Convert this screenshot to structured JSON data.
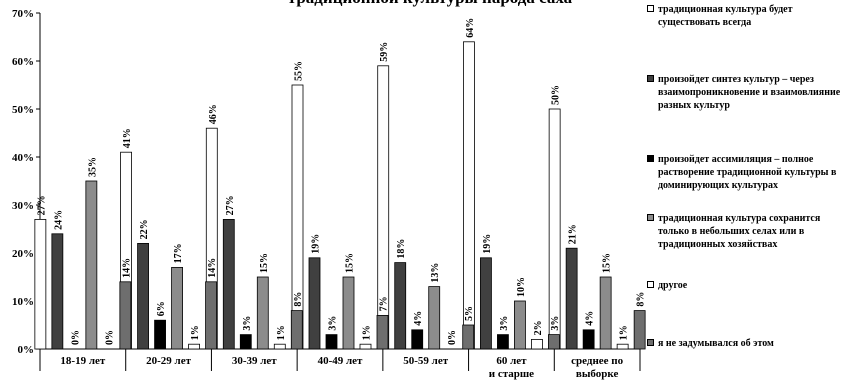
{
  "chart_data": {
    "type": "bar",
    "title": "традиционной культуры народа саха",
    "categories": [
      "18-19 лет",
      "20-29 лет",
      "30-39 лет",
      "40-49 лет",
      "50-59 лет",
      "60 лет и старше",
      "среднее по выборке"
    ],
    "ylim": [
      0,
      70
    ],
    "yticks": [
      "0%",
      "10%",
      "20%",
      "30%",
      "40%",
      "50%",
      "60%",
      "70%"
    ],
    "series": [
      {
        "name": "традиционная культура будет существовать всегда",
        "color": "#ffffff",
        "values": [
          27,
          41,
          46,
          55,
          59,
          64,
          50
        ],
        "labels": [
          "27%",
          "41%",
          "46%",
          "55%",
          "59%",
          "64%",
          "50%"
        ]
      },
      {
        "name": "произойдет синтез культур – через взаимопроникновение и взаимовлияние разных культур",
        "color": "#404040",
        "values": [
          24,
          22,
          27,
          19,
          18,
          19,
          21
        ],
        "labels": [
          "24%",
          "22%",
          "27%",
          "19%",
          "18%",
          "19%",
          "21%"
        ]
      },
      {
        "name": "произойдет ассимиляция – полное растворение традиционной культуры в доминирующих культурах",
        "color": "#000000",
        "values": [
          0,
          6,
          3,
          3,
          4,
          3,
          4
        ],
        "labels": [
          "0%",
          "6%",
          "3%",
          "3%",
          "4%",
          "3%",
          "4%"
        ]
      },
      {
        "name": "традиционная культура сохранится только в небольших селах или в традиционных хозяйствах",
        "color": "#8c8c8c",
        "values": [
          35,
          17,
          15,
          15,
          13,
          10,
          15
        ],
        "labels": [
          "35%",
          "17%",
          "15%",
          "15%",
          "13%",
          "10%",
          "15%"
        ]
      },
      {
        "name": "другое",
        "color": "#ffffff",
        "values": [
          0,
          1,
          1,
          1,
          0,
          2,
          1
        ],
        "labels": [
          "0%",
          "1%",
          "1%",
          "1%",
          "0%",
          "2%",
          "1%"
        ]
      },
      {
        "name": "я не задумывался об этом",
        "color": "#6e6e6e",
        "values": [
          14,
          14,
          8,
          7,
          5,
          3,
          8
        ],
        "labels": [
          "14%",
          "14%",
          "8%",
          "7%",
          "5%",
          "3%",
          "8%"
        ]
      }
    ],
    "grid": false,
    "legend_position": "right"
  }
}
